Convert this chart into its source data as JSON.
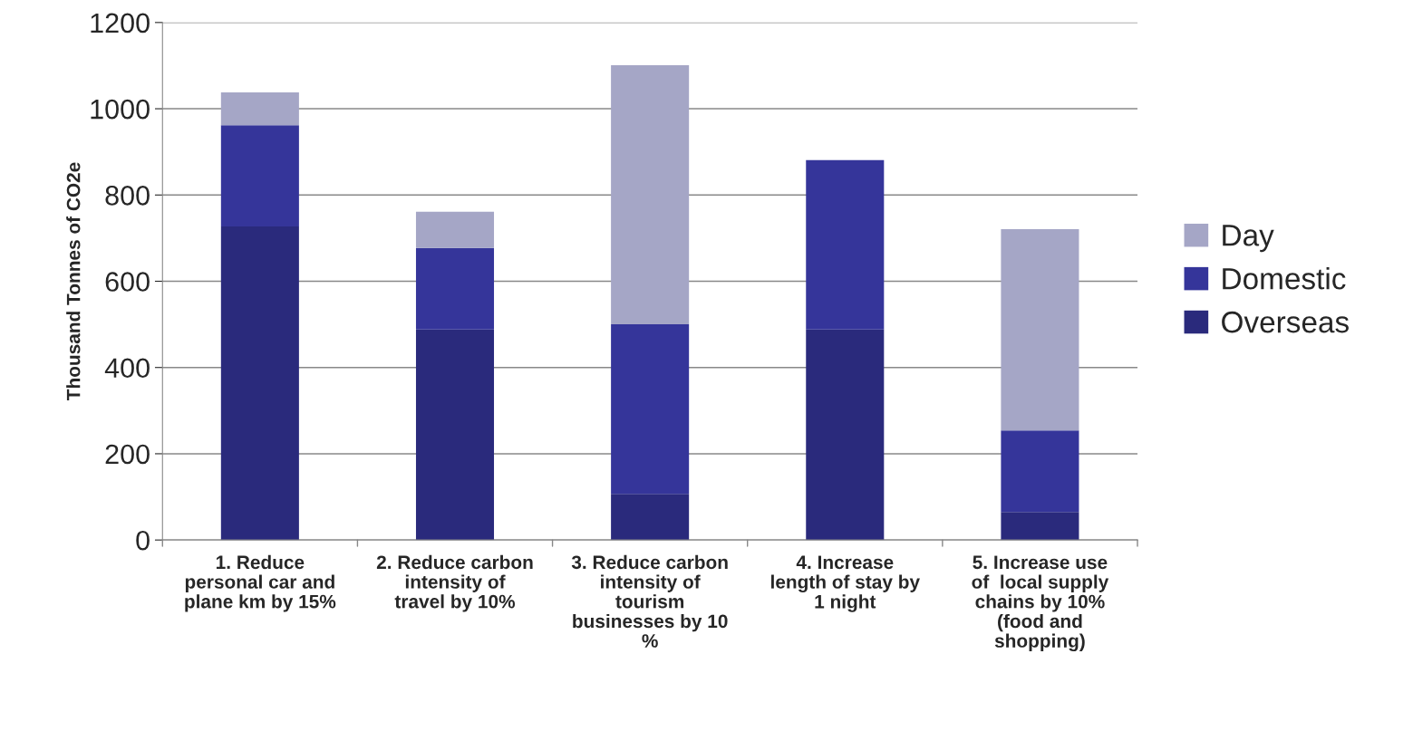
{
  "chart_data": {
    "type": "bar",
    "stacked": true,
    "ylabel": "Thousand Tonnes of CO2e",
    "categories": [
      "1. Reduce personal car and plane km by 15%",
      "2. Reduce carbon intensity of travel by 10%",
      "3. Reduce carbon intensity of tourism businesses by 10 %",
      "4. Increase length of stay by 1 night",
      "5. Increase use of  local supply chains by 10% (food and shopping)"
    ],
    "series": [
      {
        "name": "Overseas",
        "color": "#2a2a7c",
        "values": [
          727,
          488,
          107,
          488,
          65
        ]
      },
      {
        "name": "Domestic",
        "color": "#35359a",
        "values": [
          235,
          189,
          393,
          393,
          189
        ]
      },
      {
        "name": "Day",
        "color": "#a5a6c6",
        "values": [
          76,
          84,
          601,
          null,
          467
        ]
      }
    ],
    "ylim": [
      0,
      1200
    ],
    "yticks": [
      0,
      200,
      400,
      600,
      800,
      1000,
      1200
    ],
    "grid": "y",
    "legend": "right"
  }
}
